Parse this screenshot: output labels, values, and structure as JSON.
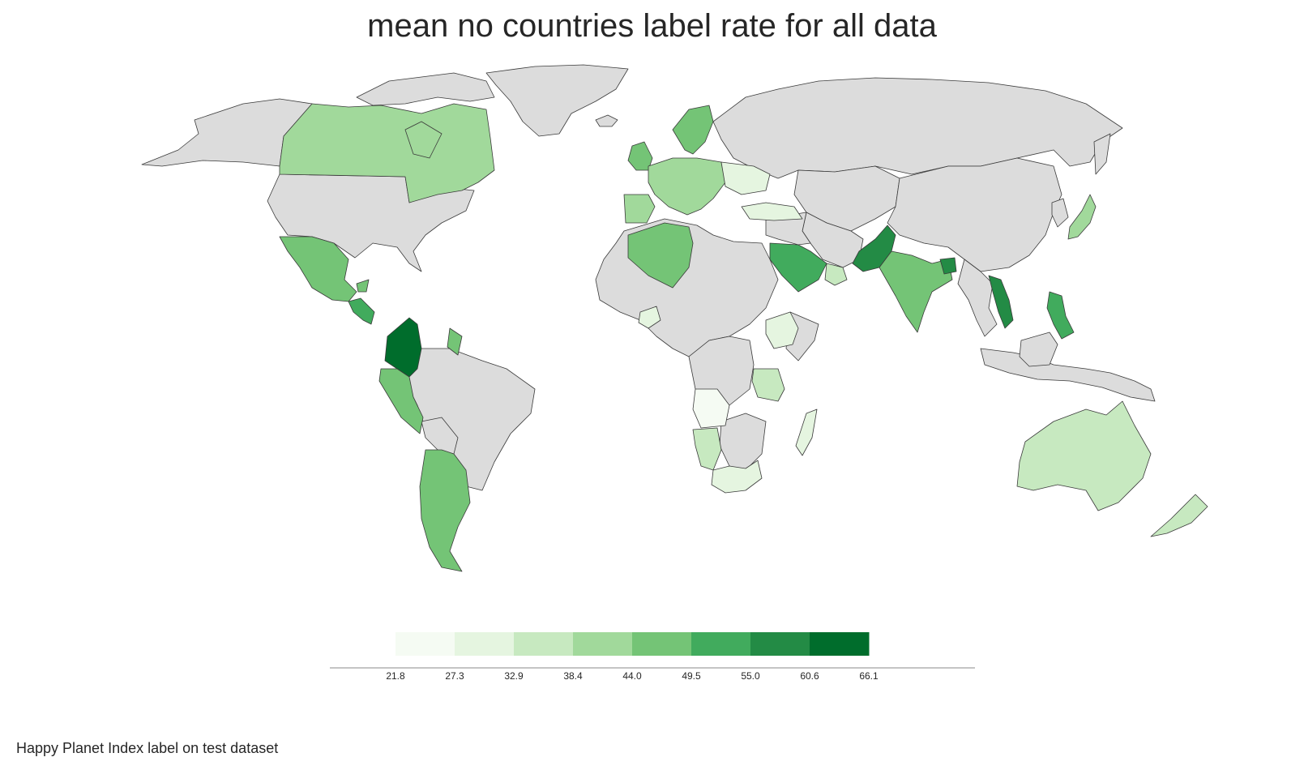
{
  "title": "mean no countries label rate for all data",
  "footer": "Happy Planet Index label on test dataset",
  "colors": {
    "no_data": "#dcdcdc",
    "border": "#3a3a3a",
    "scale": [
      "#f5fbf3",
      "#e5f5e0",
      "#c7e9c0",
      "#a1d99b",
      "#74c476",
      "#41ab5d",
      "#238b45",
      "#006d2c"
    ]
  },
  "legend": {
    "ticks": [
      "21.8",
      "27.3",
      "32.9",
      "38.4",
      "44.0",
      "49.5",
      "55.0",
      "60.6",
      "66.1"
    ]
  },
  "chart_data": {
    "type": "choropleth",
    "bins": [
      21.8,
      27.3,
      32.9,
      38.4,
      44.0,
      49.5,
      55.0,
      60.6,
      66.1
    ],
    "colored_countries": [
      {
        "id": "canada",
        "bin": 3
      },
      {
        "id": "mexico",
        "bin": 4
      },
      {
        "id": "central-america-a",
        "bin": 5
      },
      {
        "id": "central-america-b",
        "bin": 4
      },
      {
        "id": "colombia",
        "bin": 7
      },
      {
        "id": "venezuela-guyana",
        "bin": 4
      },
      {
        "id": "peru-ecuador",
        "bin": 4
      },
      {
        "id": "argentina",
        "bin": 4
      },
      {
        "id": "uk-ireland",
        "bin": 4
      },
      {
        "id": "iberia",
        "bin": 3
      },
      {
        "id": "scandinavia",
        "bin": 4
      },
      {
        "id": "western-europe",
        "bin": 3
      },
      {
        "id": "eastern-europe",
        "bin": 1
      },
      {
        "id": "turkey",
        "bin": 1
      },
      {
        "id": "algeria",
        "bin": 4
      },
      {
        "id": "saudi-arabia",
        "bin": 5
      },
      {
        "id": "oman",
        "bin": 2
      },
      {
        "id": "pakistan",
        "bin": 6
      },
      {
        "id": "india",
        "bin": 4
      },
      {
        "id": "bangladesh",
        "bin": 6
      },
      {
        "id": "vietnam",
        "bin": 6
      },
      {
        "id": "philippines",
        "bin": 5
      },
      {
        "id": "japan",
        "bin": 3
      },
      {
        "id": "ethiopia",
        "bin": 1
      },
      {
        "id": "tanzania",
        "bin": 2
      },
      {
        "id": "angola",
        "bin": 0
      },
      {
        "id": "namibia",
        "bin": 2
      },
      {
        "id": "south-africa",
        "bin": 1
      },
      {
        "id": "madagascar",
        "bin": 1
      },
      {
        "id": "nigeria-region",
        "bin": 1
      },
      {
        "id": "australia",
        "bin": 2
      },
      {
        "id": "new-zealand",
        "bin": 2
      }
    ]
  }
}
